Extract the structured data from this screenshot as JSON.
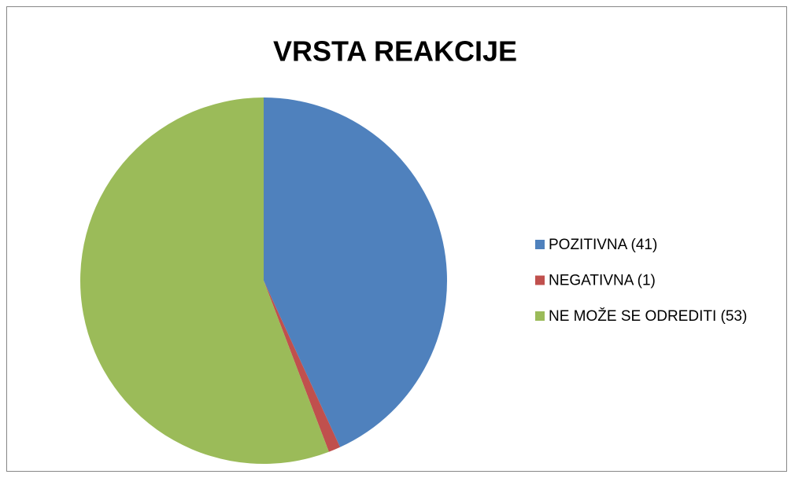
{
  "chart_data": {
    "type": "pie",
    "title": "VRSTA REAKCIJE",
    "categories": [
      "POZITIVNA (41)",
      "NEGATIVNA (1)",
      "NE MOŽE SE ODREDITI (53)"
    ],
    "values": [
      41,
      1,
      53
    ],
    "colors": [
      "#4f81bd",
      "#c0504d",
      "#9bbb59"
    ],
    "legend": "right"
  }
}
